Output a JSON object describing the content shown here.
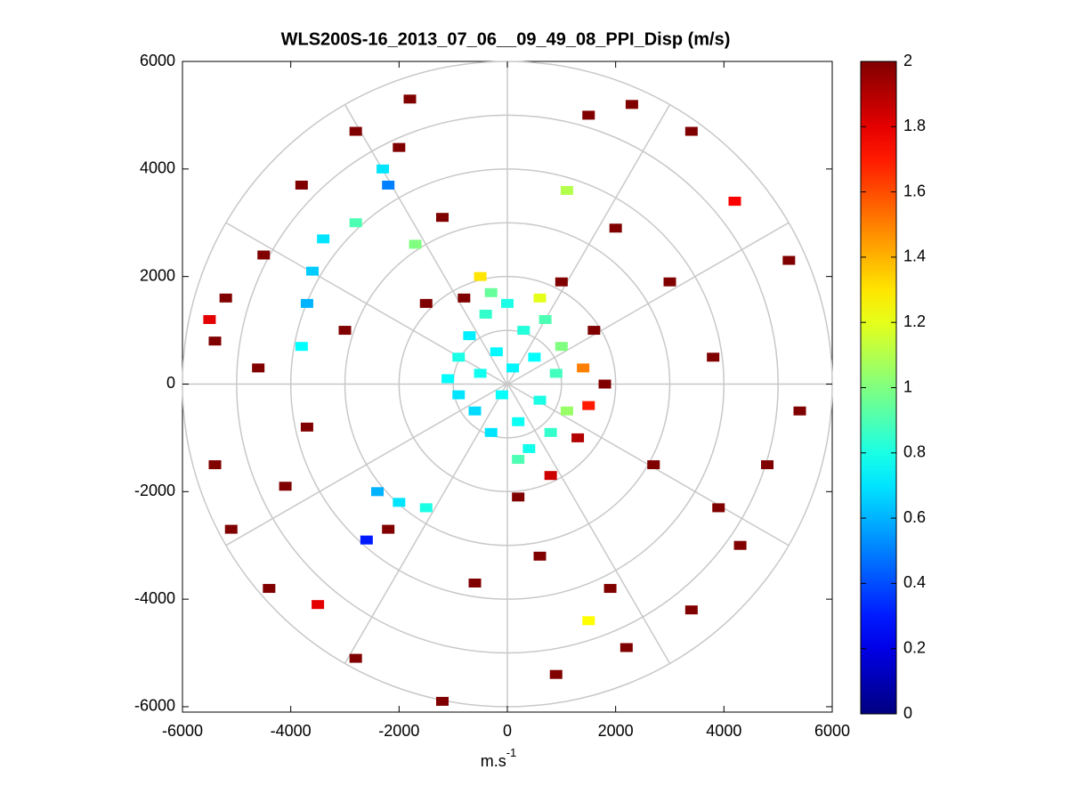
{
  "chart_data": {
    "type": "polar-scatter",
    "title": "WLS200S-16_2013_07_06__09_49_08_PPI_Disp (m/s)",
    "xlabel": "m.s",
    "xlabel_superscript": "-1",
    "xlim": [
      -6000,
      6000
    ],
    "ylim": [
      -6100,
      6000
    ],
    "xticks": [
      -6000,
      -4000,
      -2000,
      0,
      2000,
      4000,
      6000
    ],
    "yticks": [
      -6000,
      -4000,
      -2000,
      0,
      2000,
      4000,
      6000
    ],
    "clim": [
      0,
      2
    ],
    "cticks": [
      0,
      0.2,
      0.4,
      0.6,
      0.8,
      1,
      1.2,
      1.4,
      1.6,
      1.8,
      2
    ],
    "colormap": "jet",
    "x": [
      -1100,
      -900,
      -900,
      -700,
      -600,
      -500,
      -400,
      -300,
      -200,
      -100,
      0,
      100,
      200,
      300,
      400,
      500,
      600,
      700,
      800,
      900,
      1000,
      1100,
      200,
      -300,
      600,
      1400,
      1500,
      1300,
      800,
      200,
      1600,
      1000,
      -500,
      -800,
      1800,
      -5400,
      -5200,
      -4500,
      -3800,
      -2800,
      -1800,
      -2000,
      -1200,
      1500,
      2300,
      3400,
      4200,
      5200,
      5400,
      4800,
      4300,
      3400,
      2200,
      900,
      -1200,
      -2800,
      -4400,
      -5400,
      -5100,
      -4600,
      -3700,
      -2200,
      3800,
      2700,
      3000,
      2000,
      -3000,
      -1500,
      -600,
      600,
      1900,
      3900,
      -4100,
      -3400,
      -3600,
      -3700,
      -3800,
      -2300,
      -2200,
      -2400,
      -2000,
      -1500,
      -2600,
      -3500,
      1500,
      1100,
      4200,
      -5500,
      -1700,
      -2800
    ],
    "y": [
      100,
      -200,
      500,
      900,
      -500,
      200,
      1300,
      -900,
      600,
      -200,
      1500,
      300,
      -700,
      1000,
      -1200,
      500,
      -300,
      1200,
      -900,
      200,
      700,
      -500,
      -1400,
      1700,
      1600,
      300,
      -400,
      -1000,
      -1700,
      -2100,
      1000,
      1900,
      2000,
      1600,
      0,
      800,
      1600,
      2400,
      3700,
      4700,
      5300,
      4400,
      3100,
      5000,
      5200,
      4700,
      3400,
      2300,
      -500,
      -1500,
      -3000,
      -4200,
      -4900,
      -5400,
      -5900,
      -5100,
      -3800,
      -1500,
      -2700,
      300,
      -800,
      -2700,
      500,
      -1500,
      1900,
      2900,
      1000,
      1500,
      -3700,
      -3200,
      -3800,
      -2300,
      -1900,
      2700,
      2100,
      1500,
      700,
      4000,
      3700,
      -2000,
      -2200,
      -2300,
      -2900,
      -4100,
      -4400,
      3600,
      3400,
      1200,
      2600,
      3000
    ],
    "values": [
      0.75,
      0.7,
      0.8,
      0.72,
      0.68,
      0.78,
      0.85,
      0.7,
      0.74,
      0.76,
      0.8,
      0.73,
      0.77,
      0.82,
      0.79,
      0.75,
      0.8,
      0.9,
      0.85,
      0.88,
      1,
      1.05,
      0.9,
      0.95,
      1.2,
      1.5,
      1.7,
      1.9,
      1.85,
      2,
      2,
      2,
      1.3,
      2,
      2,
      2,
      2,
      2,
      2,
      2,
      2,
      2,
      2,
      2,
      2,
      2,
      2,
      2,
      2,
      2,
      2,
      2,
      2,
      2,
      2,
      2,
      2,
      2,
      2,
      2,
      2,
      2,
      2,
      2,
      2,
      2,
      2,
      2,
      2,
      2,
      2,
      2,
      2,
      0.7,
      0.65,
      0.6,
      0.75,
      0.7,
      0.5,
      0.6,
      0.7,
      0.8,
      0.3,
      1.8,
      1.25,
      1.1,
      1.75,
      1.8,
      1,
      0.9
    ]
  }
}
